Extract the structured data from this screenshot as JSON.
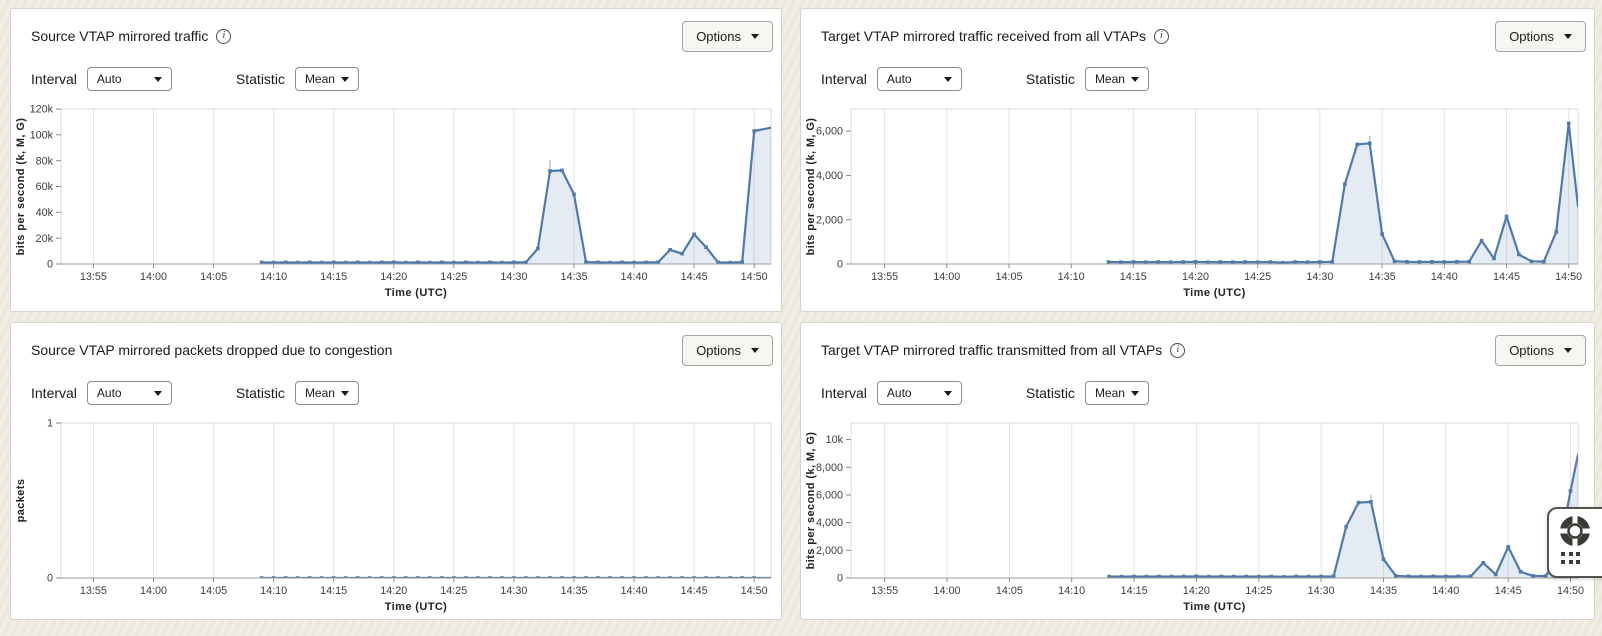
{
  "colors": {
    "line": "#4e7aae",
    "area_fill": "#dfe6f1",
    "whisker": "#9fb6d0",
    "grid": "#e5e4e1",
    "plot_border": "#d9d8d4",
    "axis_line": "#9d9c97",
    "panel_border": "#d5d3ce",
    "page_background": "#f1ede3",
    "text": "#1c1b19"
  },
  "panels": [
    {
      "title": "Source VTAP mirrored traffic",
      "info_icon": true,
      "options_label": "Options",
      "interval_label": "Interval",
      "interval_value": "Auto",
      "statistic_label": "Statistic",
      "statistic_value": "Mean"
    },
    {
      "title": "Target VTAP mirrored traffic received from all VTAPs",
      "info_icon": true,
      "options_label": "Options",
      "interval_label": "Interval",
      "interval_value": "Auto",
      "statistic_label": "Statistic",
      "statistic_value": "Mean"
    },
    {
      "title": "Source VTAP mirrored packets dropped due to congestion",
      "info_icon": false,
      "options_label": "Options",
      "interval_label": "Interval",
      "interval_value": "Auto",
      "statistic_label": "Statistic",
      "statistic_value": "Mean"
    },
    {
      "title": "Target VTAP mirrored traffic transmitted from all VTAPs",
      "info_icon": true,
      "options_label": "Options",
      "interval_label": "Interval",
      "interval_value": "Auto",
      "statistic_label": "Statistic",
      "statistic_value": "Mean"
    }
  ],
  "chart_data": [
    {
      "type": "area",
      "title": "Source VTAP mirrored traffic",
      "xlabel": "Time (UTC)",
      "ylabel": "bits per second (k, M, G)",
      "x_tick_labels": [
        "13:55",
        "14:00",
        "14:05",
        "14:10",
        "14:15",
        "14:20",
        "14:25",
        "14:30",
        "14:35",
        "14:40",
        "14:45",
        "14:50"
      ],
      "x_tick_minutes": [
        -5,
        0,
        5,
        10,
        15,
        20,
        25,
        30,
        35,
        40,
        45,
        50
      ],
      "x_range_minutes": [
        -7.7,
        51.4
      ],
      "ylim": [
        0,
        120000
      ],
      "grid": "vertical",
      "legend": "none",
      "y_ticks": [
        {
          "v": 0,
          "label": "0"
        },
        {
          "v": 20000,
          "label": "20k"
        },
        {
          "v": 40000,
          "label": "40k"
        },
        {
          "v": 60000,
          "label": "60k"
        },
        {
          "v": 80000,
          "label": "80k"
        },
        {
          "v": 100000,
          "label": "100k"
        },
        {
          "v": 120000,
          "label": "120k"
        }
      ],
      "series": [
        {
          "name": "Mean",
          "points": [
            [
              9,
              1200
            ],
            [
              10,
              1100
            ],
            [
              11,
              1200
            ],
            [
              12,
              1100
            ],
            [
              13,
              1200
            ],
            [
              14,
              1100
            ],
            [
              15,
              1200
            ],
            [
              16,
              1100
            ],
            [
              17,
              1200
            ],
            [
              18,
              1100
            ],
            [
              19,
              1200
            ],
            [
              20,
              1300
            ],
            [
              21,
              1100
            ],
            [
              22,
              1200
            ],
            [
              23,
              1100
            ],
            [
              24,
              1200
            ],
            [
              25,
              1100
            ],
            [
              26,
              1200
            ],
            [
              27,
              1100
            ],
            [
              28,
              1200
            ],
            [
              29,
              1100
            ],
            [
              30,
              1200
            ],
            [
              31,
              1300
            ],
            [
              32,
              12000
            ],
            [
              33,
              72000
            ],
            [
              34,
              72500
            ],
            [
              35,
              54000
            ],
            [
              36,
              1500
            ],
            [
              37,
              1200
            ],
            [
              38,
              1100
            ],
            [
              39,
              1200
            ],
            [
              40,
              1100
            ],
            [
              41,
              1200
            ],
            [
              42,
              1300
            ],
            [
              43,
              11000
            ],
            [
              44,
              8000
            ],
            [
              45,
              23000
            ],
            [
              46,
              13000
            ],
            [
              47,
              1200
            ],
            [
              48,
              1100
            ],
            [
              49,
              1500
            ],
            [
              50,
              103000
            ]
          ],
          "tail": [
            51.4,
            105500
          ]
        }
      ],
      "whiskers": [
        [
          33,
          72000,
          80500
        ]
      ]
    },
    {
      "type": "area",
      "title": "Target VTAP mirrored traffic received from all VTAPs",
      "xlabel": "Time (UTC)",
      "ylabel": "bits per second (k, M, G)",
      "x_tick_labels": [
        "13:55",
        "14:00",
        "14:05",
        "14:10",
        "14:15",
        "14:20",
        "14:25",
        "14:30",
        "14:35",
        "14:40",
        "14:45",
        "14:50"
      ],
      "x_tick_minutes": [
        -5,
        0,
        5,
        10,
        15,
        20,
        25,
        30,
        35,
        40,
        45,
        50
      ],
      "x_range_minutes": [
        -7.7,
        50.75
      ],
      "ylim": [
        0,
        7000
      ],
      "grid": "vertical",
      "legend": "none",
      "y_ticks": [
        {
          "v": 0,
          "label": "0"
        },
        {
          "v": 2000,
          "label": "2,000"
        },
        {
          "v": 4000,
          "label": "4,000"
        },
        {
          "v": 6000,
          "label": "6,000"
        }
      ],
      "series": [
        {
          "name": "Mean",
          "points": [
            [
              13,
              90
            ],
            [
              14,
              80
            ],
            [
              15,
              90
            ],
            [
              16,
              80
            ],
            [
              17,
              90
            ],
            [
              18,
              80
            ],
            [
              19,
              90
            ],
            [
              20,
              100
            ],
            [
              21,
              80
            ],
            [
              22,
              90
            ],
            [
              23,
              80
            ],
            [
              24,
              90
            ],
            [
              25,
              80
            ],
            [
              26,
              90
            ],
            [
              27,
              60
            ],
            [
              28,
              90
            ],
            [
              29,
              80
            ],
            [
              30,
              90
            ],
            [
              31,
              100
            ],
            [
              32,
              3600
            ],
            [
              33,
              5400
            ],
            [
              34,
              5450
            ],
            [
              35,
              1350
            ],
            [
              36,
              120
            ],
            [
              37,
              100
            ],
            [
              38,
              90
            ],
            [
              39,
              100
            ],
            [
              40,
              90
            ],
            [
              41,
              100
            ],
            [
              42,
              110
            ],
            [
              43,
              1050
            ],
            [
              44,
              250
            ],
            [
              45,
              2150
            ],
            [
              46,
              430
            ],
            [
              47,
              120
            ],
            [
              48,
              110
            ],
            [
              49,
              1450
            ],
            [
              50,
              6350
            ]
          ],
          "tail": [
            50.75,
            2600
          ]
        }
      ],
      "whiskers": [
        [
          34,
          5450,
          5800
        ]
      ]
    },
    {
      "type": "area",
      "title": "Source VTAP mirrored packets dropped due to congestion",
      "xlabel": "Time (UTC)",
      "ylabel": "packets",
      "x_tick_labels": [
        "13:55",
        "14:00",
        "14:05",
        "14:10",
        "14:15",
        "14:20",
        "14:25",
        "14:30",
        "14:35",
        "14:40",
        "14:45",
        "14:50"
      ],
      "x_tick_minutes": [
        -5,
        0,
        5,
        10,
        15,
        20,
        25,
        30,
        35,
        40,
        45,
        50
      ],
      "x_range_minutes": [
        -7.7,
        51.4
      ],
      "ylim": [
        0,
        1
      ],
      "grid": "vertical",
      "legend": "none",
      "y_ticks": [
        {
          "v": 0,
          "label": "0"
        },
        {
          "v": 1,
          "label": "1"
        }
      ],
      "series": [
        {
          "name": "Mean",
          "points": [
            [
              9,
              0
            ],
            [
              10,
              0
            ],
            [
              11,
              0
            ],
            [
              12,
              0
            ],
            [
              13,
              0
            ],
            [
              14,
              0
            ],
            [
              15,
              0
            ],
            [
              16,
              0
            ],
            [
              17,
              0
            ],
            [
              18,
              0
            ],
            [
              19,
              0
            ],
            [
              20,
              0
            ],
            [
              21,
              0
            ],
            [
              22,
              0
            ],
            [
              23,
              0
            ],
            [
              24,
              0
            ],
            [
              25,
              0
            ],
            [
              26,
              0
            ],
            [
              27,
              0
            ],
            [
              28,
              0
            ],
            [
              29,
              0
            ],
            [
              30,
              0
            ],
            [
              31,
              0
            ],
            [
              32,
              0
            ],
            [
              33,
              0
            ],
            [
              34,
              0
            ],
            [
              35,
              0
            ],
            [
              36,
              0
            ],
            [
              37,
              0
            ],
            [
              38,
              0
            ],
            [
              39,
              0
            ],
            [
              40,
              0
            ],
            [
              41,
              0
            ],
            [
              42,
              0
            ],
            [
              43,
              0
            ],
            [
              44,
              0
            ],
            [
              45,
              0
            ],
            [
              46,
              0
            ],
            [
              47,
              0
            ],
            [
              48,
              0
            ],
            [
              49,
              0
            ],
            [
              50,
              0
            ]
          ],
          "tail": [
            51.4,
            0
          ]
        }
      ],
      "whiskers": []
    },
    {
      "type": "area",
      "title": "Target VTAP mirrored traffic transmitted from all VTAPs",
      "xlabel": "Time (UTC)",
      "ylabel": "bits per second (k, M, G)",
      "x_tick_labels": [
        "13:55",
        "14:00",
        "14:05",
        "14:10",
        "14:15",
        "14:20",
        "14:25",
        "14:30",
        "14:35",
        "14:40",
        "14:45",
        "14:50"
      ],
      "x_tick_minutes": [
        -5,
        0,
        5,
        10,
        15,
        20,
        25,
        30,
        35,
        40,
        45,
        50
      ],
      "x_range_minutes": [
        -7.7,
        50.6
      ],
      "ylim": [
        0,
        11200
      ],
      "grid": "vertical",
      "legend": "none",
      "y_ticks": [
        {
          "v": 0,
          "label": "0"
        },
        {
          "v": 2000,
          "label": "2,000"
        },
        {
          "v": 4000,
          "label": "4,000"
        },
        {
          "v": 6000,
          "label": "6,000"
        },
        {
          "v": 8000,
          "label": "8,000"
        },
        {
          "v": 10000,
          "label": "10k"
        }
      ],
      "series": [
        {
          "name": "Mean",
          "points": [
            [
              13,
              110
            ],
            [
              14,
              100
            ],
            [
              15,
              110
            ],
            [
              16,
              100
            ],
            [
              17,
              110
            ],
            [
              18,
              100
            ],
            [
              19,
              110
            ],
            [
              20,
              120
            ],
            [
              21,
              100
            ],
            [
              22,
              110
            ],
            [
              23,
              100
            ],
            [
              24,
              110
            ],
            [
              25,
              100
            ],
            [
              26,
              110
            ],
            [
              27,
              80
            ],
            [
              28,
              110
            ],
            [
              29,
              100
            ],
            [
              30,
              110
            ],
            [
              31,
              120
            ],
            [
              32,
              3700
            ],
            [
              33,
              5450
            ],
            [
              34,
              5500
            ],
            [
              35,
              1350
            ],
            [
              36,
              150
            ],
            [
              37,
              120
            ],
            [
              38,
              110
            ],
            [
              39,
              120
            ],
            [
              40,
              110
            ],
            [
              41,
              120
            ],
            [
              42,
              130
            ],
            [
              43,
              1100
            ],
            [
              44,
              250
            ],
            [
              45,
              2250
            ],
            [
              46,
              450
            ],
            [
              47,
              150
            ],
            [
              48,
              140
            ],
            [
              49,
              1450
            ],
            [
              50,
              6300
            ]
          ],
          "tail": [
            50.6,
            8900
          ]
        }
      ],
      "whiskers": [
        [
          34,
          5500,
          6050
        ]
      ]
    }
  ],
  "floating_widget": {
    "buttons": [
      {
        "icon": "life-ring-icon"
      },
      {
        "icon": "apps-grid-icon"
      }
    ]
  }
}
